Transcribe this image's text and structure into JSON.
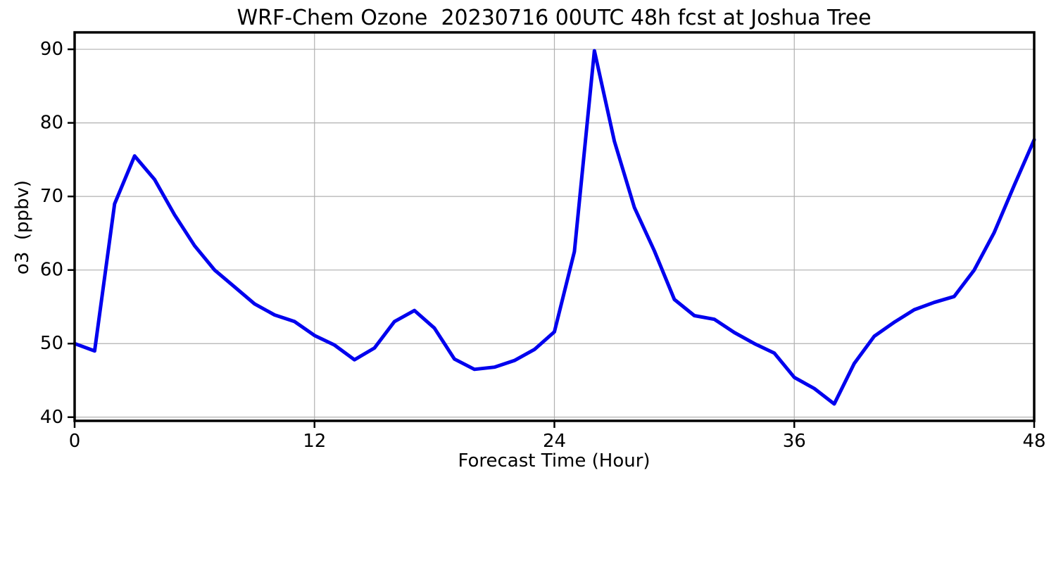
{
  "figure": {
    "title": "WRF-Chem Ozone  20230716 00UTC 48h fcst at Joshua Tree"
  },
  "chart_data": {
    "type": "line",
    "title": "WRF-Chem Ozone  20230716 00UTC 48h fcst at Joshua Tree",
    "xlabel": "Forecast Time (Hour)",
    "ylabel": "o3  (ppbv)",
    "x": [
      0,
      1,
      2,
      3,
      4,
      5,
      6,
      7,
      8,
      9,
      10,
      11,
      12,
      13,
      14,
      15,
      16,
      17,
      18,
      19,
      20,
      21,
      22,
      23,
      24,
      25,
      26,
      27,
      28,
      29,
      30,
      31,
      32,
      33,
      34,
      35,
      36,
      37,
      38,
      39,
      40,
      41,
      42,
      43,
      44,
      45,
      46,
      47,
      48
    ],
    "series": [
      {
        "name": "o3",
        "values": [
          50.0,
          49.0,
          69.0,
          75.5,
          72.3,
          67.5,
          63.3,
          60.0,
          57.7,
          55.4,
          53.9,
          53.0,
          51.1,
          49.8,
          47.8,
          49.4,
          53.0,
          54.5,
          52.1,
          47.9,
          46.5,
          46.8,
          47.7,
          49.2,
          51.6,
          62.5,
          89.8,
          77.5,
          68.5,
          62.6,
          56.0,
          53.8,
          53.3,
          51.5,
          50.0,
          48.7,
          45.4,
          43.9,
          41.8,
          47.3,
          51.0,
          52.9,
          54.6,
          55.6,
          56.4,
          60.0,
          65.1,
          71.5,
          77.7
        ]
      }
    ],
    "xlim": [
      0,
      48
    ],
    "ylim": [
      39.5,
      92.3
    ],
    "xticks": [
      0,
      12,
      24,
      36,
      48
    ],
    "yticks": [
      40,
      50,
      60,
      70,
      80,
      90
    ],
    "grid": true,
    "legend_position": "none"
  },
  "colors": {
    "line": "#0000ee",
    "grid": "#b0b0b0",
    "spine": "#000000",
    "tick": "#000000",
    "text": "#000000",
    "background": "#ffffff"
  }
}
